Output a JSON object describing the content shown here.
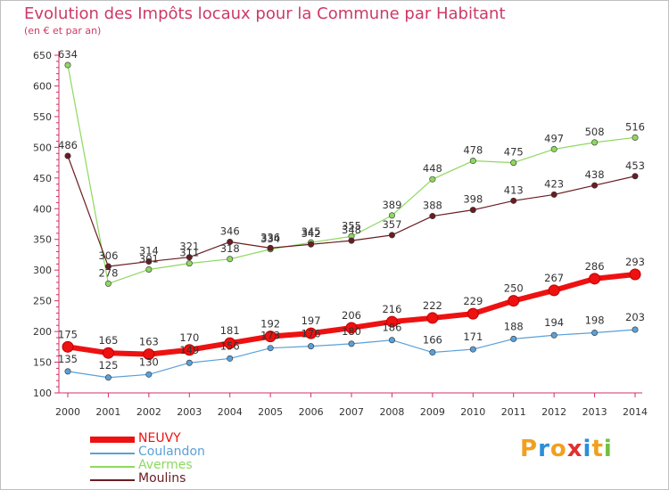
{
  "title": "Evolution des Impôts locaux pour la Commune par Habitant",
  "subtitle": "(en € et par an)",
  "logo": {
    "letters": [
      "P",
      "r",
      "o",
      "x",
      "i",
      "t",
      "i"
    ],
    "colors": [
      "#f0a020",
      "#2a8fd8",
      "#f0a020",
      "#e03030",
      "#2a8fd8",
      "#f0a020",
      "#70c040"
    ]
  },
  "chart_data": {
    "type": "line",
    "title": "Evolution des Impôts locaux pour la Commune par Habitant",
    "subtitle": "(en € et par an)",
    "x": [
      "2000",
      "2001",
      "2002",
      "2003",
      "2004",
      "2005",
      "2006",
      "2007",
      "2008",
      "2009",
      "2010",
      "2011",
      "2012",
      "2013",
      "2014"
    ],
    "ylim": [
      100,
      650
    ],
    "yticks": [
      100,
      150,
      200,
      250,
      300,
      350,
      400,
      450,
      500,
      550,
      600,
      650
    ],
    "grid": false,
    "legend_position": "bottom-left",
    "series": [
      {
        "name": "NEUVY",
        "color": "#ee1111",
        "marker": "#ee1111",
        "width": 6,
        "values": [
          175,
          165,
          163,
          170,
          181,
          192,
          197,
          206,
          216,
          222,
          229,
          250,
          267,
          286,
          293
        ]
      },
      {
        "name": "Coulandon",
        "color": "#5aa0d8",
        "marker": "#5aa0d8",
        "width": 1.2,
        "values": [
          135,
          125,
          130,
          149,
          156,
          173,
          176,
          180,
          186,
          166,
          171,
          188,
          194,
          198,
          203
        ]
      },
      {
        "name": "Avermes",
        "color": "#8ed860",
        "marker": "#8ed860",
        "width": 1.2,
        "values": [
          634,
          278,
          301,
          311,
          318,
          334,
          345,
          355,
          389,
          448,
          478,
          475,
          497,
          508,
          516
        ]
      },
      {
        "name": "Moulins",
        "color": "#6b1c22",
        "marker": "#6b1c22",
        "width": 1.2,
        "values": [
          486,
          306,
          314,
          321,
          346,
          336,
          342,
          348,
          357,
          388,
          398,
          413,
          423,
          438,
          453
        ]
      }
    ],
    "data_labels": [
      {
        "series": "NEUVY",
        "labels": [
          "175",
          "165",
          "163",
          "170",
          "181",
          "192",
          "197",
          "206",
          "216",
          "222",
          "229",
          "250",
          "267",
          "286",
          "293"
        ]
      },
      {
        "series": "Coulandon",
        "labels": [
          "135",
          "125",
          "130",
          "149",
          "156",
          "173",
          "176",
          "180",
          "186",
          "166",
          "171",
          "188",
          "194",
          "198",
          "203"
        ]
      },
      {
        "series": "Avermes",
        "labels": [
          "634",
          "278",
          "301",
          "311",
          "318",
          "334",
          "345",
          "355",
          "389",
          "448",
          "478",
          "475",
          "497",
          "508",
          "516"
        ]
      },
      {
        "series": "Moulins",
        "labels": [
          "486",
          "306",
          "314",
          "321",
          "346",
          "336",
          "342",
          "348",
          "357",
          "388",
          "398",
          "413",
          "423",
          "438",
          "453"
        ]
      }
    ]
  }
}
